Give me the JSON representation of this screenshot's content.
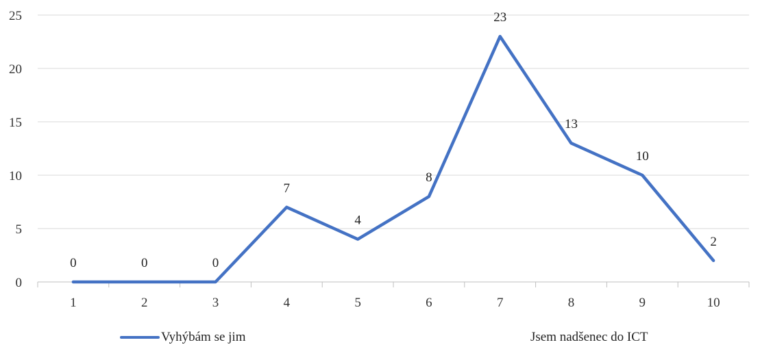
{
  "chart_data": {
    "type": "line",
    "categories": [
      "1",
      "2",
      "3",
      "4",
      "5",
      "6",
      "7",
      "8",
      "9",
      "10"
    ],
    "series": [
      {
        "name": "",
        "values": [
          0,
          0,
          0,
          7,
          4,
          8,
          23,
          13,
          10,
          2
        ]
      }
    ],
    "ylim": [
      0,
      25
    ],
    "yticks": [
      0,
      5,
      10,
      15,
      20,
      25
    ],
    "grid": true,
    "data_labels": true,
    "line_color": "#4472C4"
  },
  "legend": {
    "left_label": "Vyhýbám se jim",
    "right_label": "Jsem nadšenec do ICT"
  }
}
